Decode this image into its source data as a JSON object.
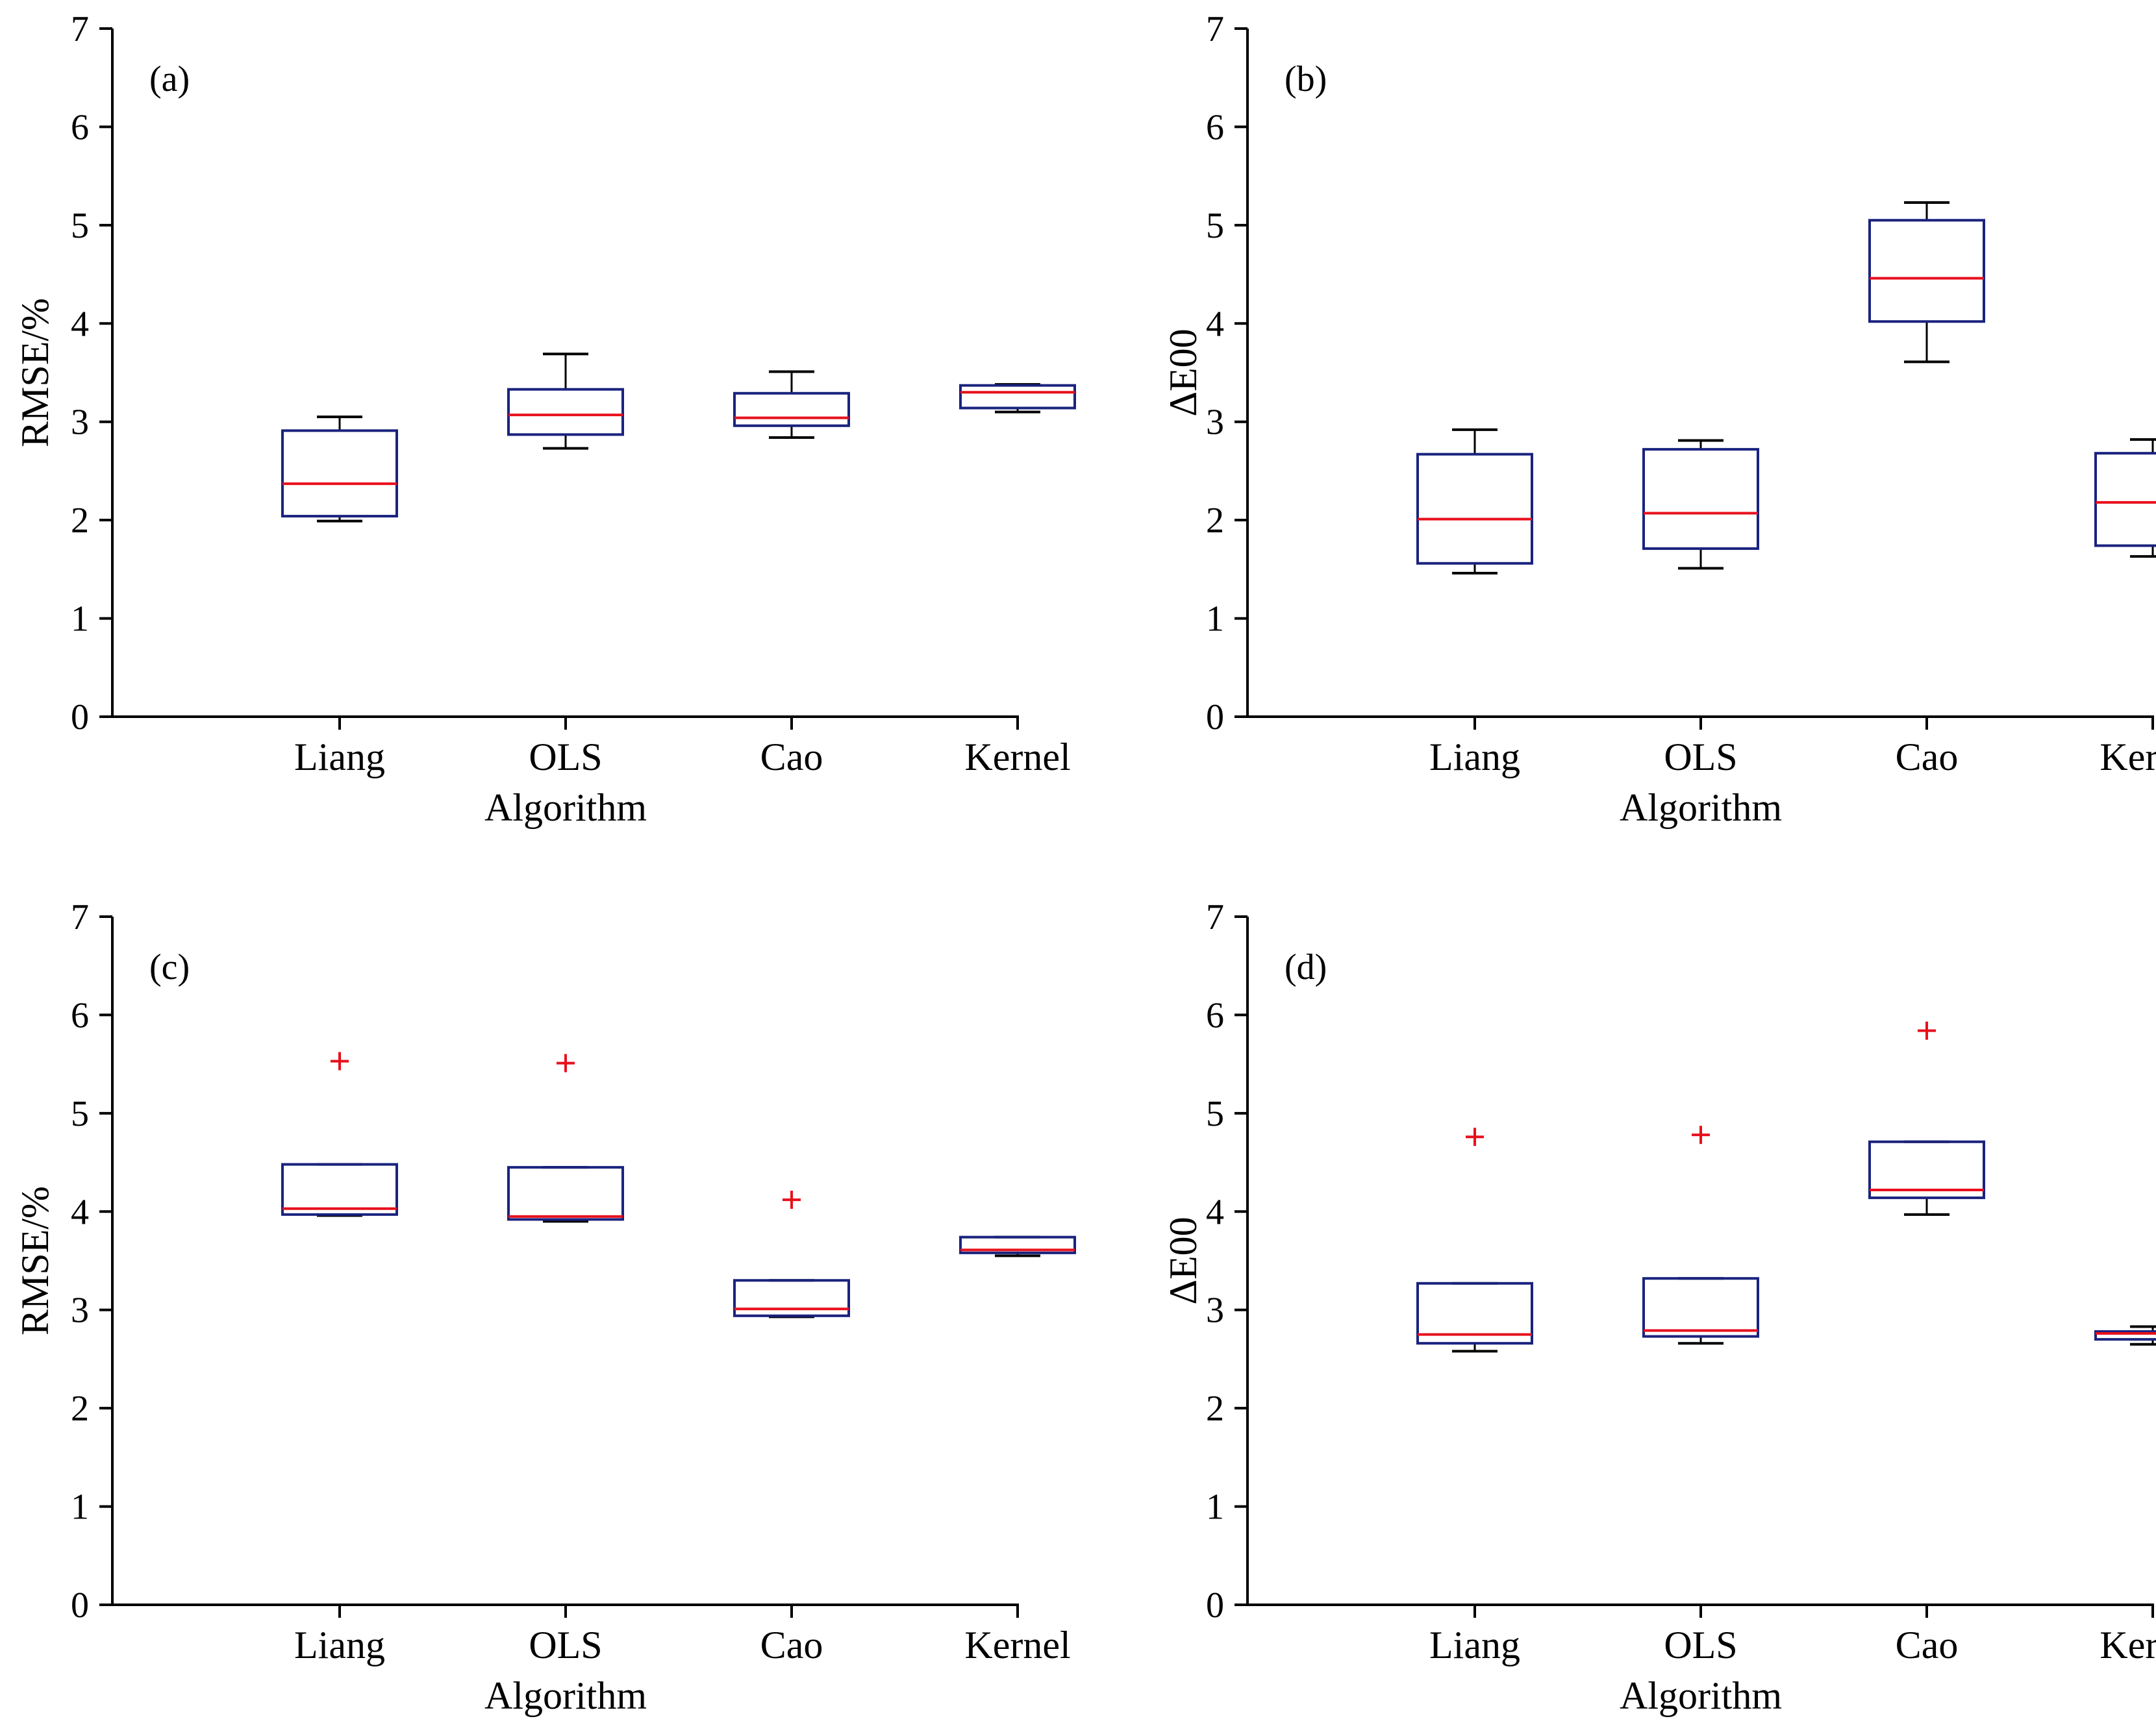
{
  "colors": {
    "box": "#1a237e",
    "median": "#e8101c",
    "outlier": "#e8101c",
    "axis": "#000000"
  },
  "chart_data": [
    {
      "panel_label": "(a)",
      "type": "box",
      "categories": [
        "Liang",
        "OLS",
        "Cao",
        "Kernel"
      ],
      "xlabel": "Algorithm",
      "ylabel": "RMSE/%",
      "ylim": [
        0,
        7
      ],
      "yticks": [
        "0",
        "1",
        "2",
        "3",
        "4",
        "5",
        "6",
        "7"
      ],
      "boxes": [
        {
          "whisker_low": 1.99,
          "q1": 2.04,
          "median": 2.37,
          "q3": 2.91,
          "whisker_high": 3.05,
          "outliers": []
        },
        {
          "whisker_low": 2.73,
          "q1": 2.87,
          "median": 3.07,
          "q3": 3.33,
          "whisker_high": 3.69,
          "outliers": []
        },
        {
          "whisker_low": 2.84,
          "q1": 2.96,
          "median": 3.04,
          "q3": 3.29,
          "whisker_high": 3.51,
          "outliers": []
        },
        {
          "whisker_low": 3.1,
          "q1": 3.14,
          "median": 3.3,
          "q3": 3.37,
          "whisker_high": 3.38,
          "outliers": []
        }
      ]
    },
    {
      "panel_label": "(b)",
      "type": "box",
      "categories": [
        "Liang",
        "OLS",
        "Cao",
        "Kernel"
      ],
      "xlabel": "Algorithm",
      "ylabel": "ΔE00",
      "ylim": [
        0,
        7
      ],
      "yticks": [
        "0",
        "1",
        "2",
        "3",
        "4",
        "5",
        "6",
        "7"
      ],
      "boxes": [
        {
          "whisker_low": 1.46,
          "q1": 1.56,
          "median": 2.01,
          "q3": 2.67,
          "whisker_high": 2.92,
          "outliers": []
        },
        {
          "whisker_low": 1.51,
          "q1": 1.71,
          "median": 2.07,
          "q3": 2.72,
          "whisker_high": 2.81,
          "outliers": []
        },
        {
          "whisker_low": 3.61,
          "q1": 4.02,
          "median": 4.46,
          "q3": 5.05,
          "whisker_high": 5.23,
          "outliers": []
        },
        {
          "whisker_low": 1.63,
          "q1": 1.74,
          "median": 2.18,
          "q3": 2.68,
          "whisker_high": 2.82,
          "outliers": []
        }
      ]
    },
    {
      "panel_label": "(c)",
      "type": "box",
      "categories": [
        "Liang",
        "OLS",
        "Cao",
        "Kernel"
      ],
      "xlabel": "Algorithm",
      "ylabel": "RMSE/%",
      "ylim": [
        0,
        7
      ],
      "yticks": [
        "0",
        "1",
        "2",
        "3",
        "4",
        "5",
        "6",
        "7"
      ],
      "boxes": [
        {
          "whisker_low": 3.96,
          "q1": 3.97,
          "median": 4.03,
          "q3": 4.48,
          "whisker_high": 4.48,
          "outliers": [
            5.53
          ]
        },
        {
          "whisker_low": 3.9,
          "q1": 3.92,
          "median": 3.95,
          "q3": 4.45,
          "whisker_high": 4.45,
          "outliers": [
            5.51
          ]
        },
        {
          "whisker_low": 2.93,
          "q1": 2.94,
          "median": 3.01,
          "q3": 3.3,
          "whisker_high": 3.3,
          "outliers": [
            4.12
          ]
        },
        {
          "whisker_low": 3.55,
          "q1": 3.58,
          "median": 3.61,
          "q3": 3.74,
          "whisker_high": 3.74,
          "outliers": []
        }
      ]
    },
    {
      "panel_label": "(d)",
      "type": "box",
      "categories": [
        "Liang",
        "OLS",
        "Cao",
        "Kernel"
      ],
      "xlabel": "Algorithm",
      "ylabel": "ΔE00",
      "ylim": [
        0,
        7
      ],
      "yticks": [
        "0",
        "1",
        "2",
        "3",
        "4",
        "5",
        "6",
        "7"
      ],
      "boxes": [
        {
          "whisker_low": 2.58,
          "q1": 2.66,
          "median": 2.75,
          "q3": 3.27,
          "whisker_high": 3.27,
          "outliers": [
            4.76
          ]
        },
        {
          "whisker_low": 2.66,
          "q1": 2.73,
          "median": 2.79,
          "q3": 3.32,
          "whisker_high": 3.32,
          "outliers": [
            4.78
          ]
        },
        {
          "whisker_low": 3.97,
          "q1": 4.14,
          "median": 4.22,
          "q3": 4.71,
          "whisker_high": 4.71,
          "outliers": [
            5.84
          ]
        },
        {
          "whisker_low": 2.65,
          "q1": 2.7,
          "median": 2.76,
          "q3": 2.78,
          "whisker_high": 2.83,
          "outliers": []
        }
      ]
    }
  ]
}
